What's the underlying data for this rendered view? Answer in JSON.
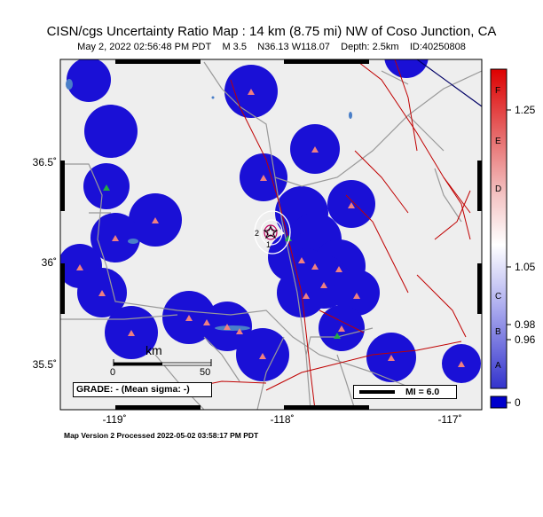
{
  "title": "CISN/cgs Uncertainty Ratio Map : 14 km (8.75 mi) NW of Coso Junction, CA",
  "subtitle": {
    "date": "May  2, 2022 02:56:48 PM PDT",
    "magnitude": "M 3.5",
    "location": "N36.13 W118.07",
    "depth": "Depth: 2.5km",
    "event_id": "ID:40250808"
  },
  "axes": {
    "lat_labels": [
      "36.5˚",
      "36˚",
      "35.5˚"
    ],
    "lon_labels": [
      "-119˚",
      "-118˚",
      "-117˚"
    ]
  },
  "scale_bar": {
    "unit": "km",
    "ticks": [
      "0",
      "50"
    ]
  },
  "grade_box": "GRADE: - (Mean sigma: -)",
  "mi_legend": "MI = 6.0",
  "colorbar": {
    "ticks": [
      "1.25",
      "1.05",
      "0.98",
      "0.96",
      "0"
    ],
    "letters": [
      "F",
      "E",
      "D",
      "C",
      "B",
      "A"
    ]
  },
  "footer": "Map Version 2 Processed 2022-05-02 03:58:17 PM PDT",
  "colors": {
    "station_fill": "#1a10d6",
    "map_background": "#eeeeee",
    "fault_line": "#c00000",
    "road": "#999999",
    "water": "#4a7fc8",
    "triangle": "#f08080"
  },
  "epicenter": {
    "lat": 36.13,
    "lon": -118.07
  }
}
